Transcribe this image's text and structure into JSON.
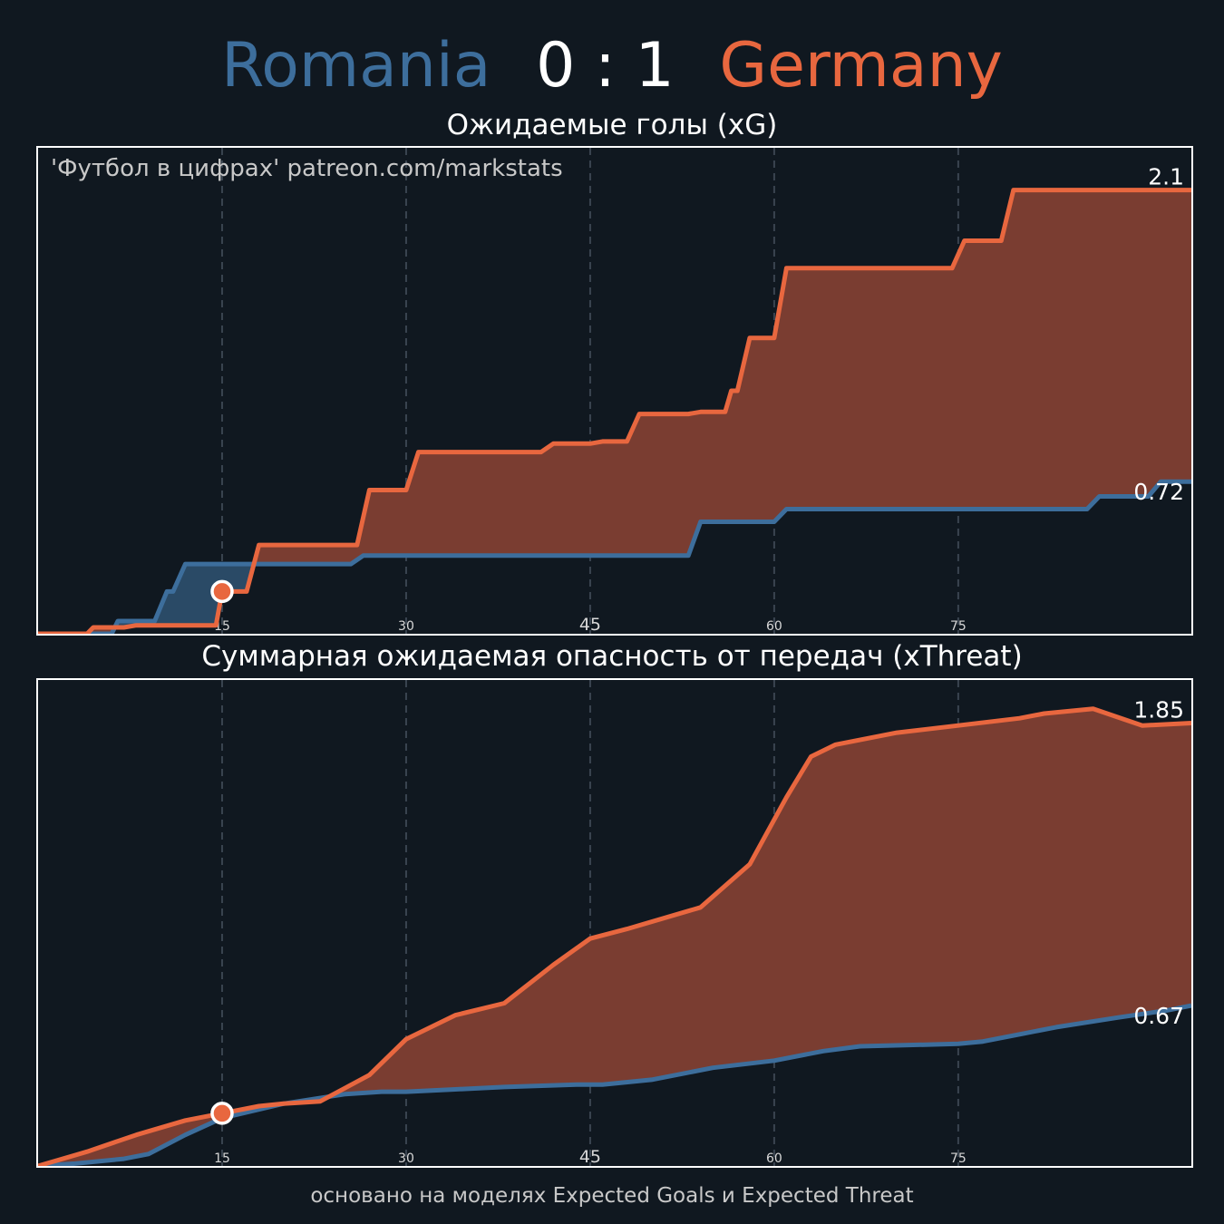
{
  "header": {
    "home_team": "Romania",
    "score": "0 : 1",
    "away_team": "Germany",
    "home_color": "#3d6e9c",
    "away_color": "#e8673f"
  },
  "watermark": "'Футбол в цифрах' patreon.com/markstats",
  "footer": "основано на моделях Expected Goals и Expected Threat",
  "chart_data": [
    {
      "type": "area",
      "title": "Ожидаемые голы (xG)",
      "step": true,
      "xlim": [
        0,
        94
      ],
      "ylim": [
        0,
        2.3
      ],
      "x_ticks": [
        "15",
        "30",
        "45",
        "60",
        "75"
      ],
      "x_tick_values": [
        15,
        30,
        45,
        60,
        75
      ],
      "grid": "vertical dashed",
      "goal_marker": {
        "x": 15,
        "team": "Germany"
      },
      "end_labels": [
        "0.72",
        "2.1"
      ],
      "series": [
        {
          "name": "Romania",
          "color": "#3d6e9c",
          "fill": "#2a4a66",
          "x": [
            0,
            6,
            6.5,
            9.5,
            10.5,
            11,
            12,
            13,
            16.5,
            17,
            18,
            25.5,
            26.5,
            53,
            54,
            60,
            61,
            85.5,
            86.5,
            88,
            88.5,
            90.5,
            91.5,
            94
          ],
          "y": [
            0,
            0,
            0.06,
            0.06,
            0.2,
            0.2,
            0.33,
            0.33,
            0.33,
            0.33,
            0.33,
            0.33,
            0.37,
            0.37,
            0.53,
            0.53,
            0.59,
            0.59,
            0.65,
            0.65,
            0.65,
            0.65,
            0.72,
            0.72
          ]
        },
        {
          "name": "Germany",
          "color": "#e8673f",
          "fill": "#7a3d31",
          "x": [
            0,
            4,
            4.5,
            7,
            8,
            14.5,
            15,
            17,
            18,
            26,
            27,
            30,
            31,
            41,
            42,
            45,
            46,
            48,
            49,
            53,
            54,
            56,
            56.5,
            57,
            58,
            60,
            61,
            74.5,
            75.5,
            78.5,
            79.5,
            94
          ],
          "y": [
            0,
            0,
            0.03,
            0.03,
            0.04,
            0.04,
            0.2,
            0.2,
            0.42,
            0.42,
            0.68,
            0.68,
            0.86,
            0.86,
            0.9,
            0.9,
            0.91,
            0.91,
            1.04,
            1.04,
            1.05,
            1.05,
            1.15,
            1.15,
            1.4,
            1.4,
            1.73,
            1.73,
            1.86,
            1.86,
            2.1,
            2.1
          ]
        }
      ]
    },
    {
      "type": "area",
      "title": "Суммарная ожидаемая опасность от передач (xThreat)",
      "step": false,
      "xlim": [
        0,
        94
      ],
      "ylim": [
        0,
        2.03
      ],
      "x_ticks": [
        "15",
        "30",
        "45",
        "60",
        "75"
      ],
      "x_tick_values": [
        15,
        30,
        45,
        60,
        75
      ],
      "grid": "vertical dashed",
      "goal_marker": {
        "x": 15,
        "team": "Germany"
      },
      "end_labels": [
        "0.67",
        "1.85"
      ],
      "series": [
        {
          "name": "Romania",
          "color": "#3d6e9c",
          "fill": "#2a4a66",
          "x": [
            0,
            3,
            7,
            9,
            12,
            15,
            20,
            25,
            28,
            30,
            34,
            38,
            44,
            46,
            50,
            55,
            60,
            64,
            67,
            75,
            77,
            83,
            88,
            92,
            94
          ],
          "y": [
            0,
            0.01,
            0.03,
            0.05,
            0.13,
            0.2,
            0.26,
            0.3,
            0.31,
            0.31,
            0.32,
            0.33,
            0.34,
            0.34,
            0.36,
            0.41,
            0.44,
            0.48,
            0.5,
            0.51,
            0.52,
            0.58,
            0.62,
            0.65,
            0.67
          ]
        },
        {
          "name": "Germany",
          "color": "#e8673f",
          "fill": "#7a3d31",
          "x": [
            0,
            4,
            8,
            12,
            15,
            18,
            20,
            23,
            27,
            30,
            34,
            38,
            42,
            45,
            48,
            54,
            58,
            61,
            63,
            65,
            70,
            75,
            80,
            82,
            86,
            90,
            94
          ],
          "y": [
            0,
            0.06,
            0.13,
            0.19,
            0.22,
            0.25,
            0.26,
            0.27,
            0.38,
            0.53,
            0.63,
            0.68,
            0.84,
            0.95,
            0.99,
            1.08,
            1.26,
            1.54,
            1.71,
            1.76,
            1.81,
            1.84,
            1.87,
            1.89,
            1.91,
            1.84,
            1.85
          ]
        }
      ]
    }
  ]
}
